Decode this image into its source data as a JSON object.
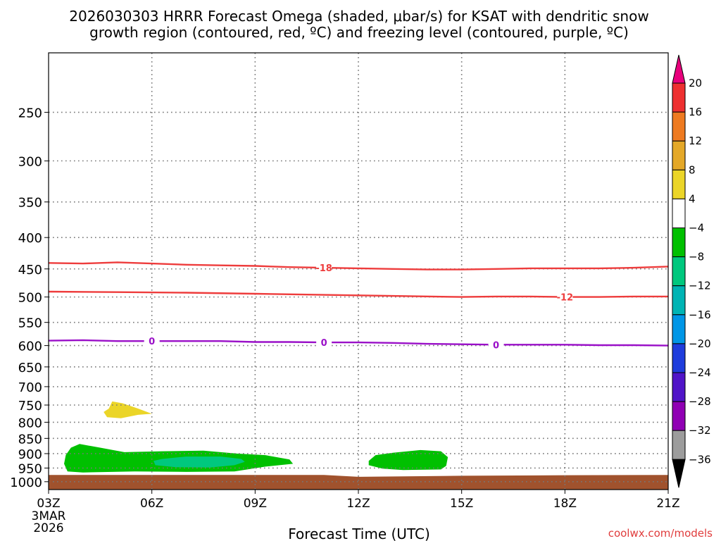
{
  "title_line1": "2026030303 HRRR Forecast Omega (shaded, μbar/s) for KSAT with dendritic snow",
  "title_line2": "growth region (contoured, red, ºC) and freezing level (contoured, purple, ºC)",
  "xlabel": "Forecast Time (UTC)",
  "credit": "coolwx.com/models",
  "chart_data": {
    "type": "time-height cross section",
    "x_ticks": [
      "03Z",
      "06Z",
      "09Z",
      "12Z",
      "15Z",
      "18Z",
      "21Z"
    ],
    "x_tick_hours": [
      3,
      6,
      9,
      12,
      15,
      18,
      21
    ],
    "x_start_date": [
      "3MAR",
      "2026"
    ],
    "x_range_hours": [
      3,
      21
    ],
    "y_ticks": [
      250,
      300,
      350,
      400,
      450,
      500,
      550,
      600,
      650,
      700,
      750,
      800,
      850,
      900,
      950,
      1000
    ],
    "y_range_hPa": [
      200,
      1030
    ],
    "y_scale": "log-pressure",
    "grid": true,
    "colorbar": {
      "labels": [
        "20",
        "16",
        "12",
        "8",
        "4",
        "−4",
        "−8",
        "−12",
        "−16",
        "−20",
        "−24",
        "−28",
        "−32",
        "−36"
      ],
      "colors": [
        "#e8007c",
        "#ee3030",
        "#ee7a20",
        "#e4a828",
        "#ebd528",
        "#ffffff",
        "#00c000",
        "#00c87e",
        "#00b4b4",
        "#0096e6",
        "#1e3cdc",
        "#5014c8",
        "#9000b4",
        "#9c9c9c",
        "#000000"
      ]
    },
    "contours": [
      {
        "label": "-18",
        "color": "#ee3c3c",
        "points": [
          [
            3,
            440
          ],
          [
            4,
            441
          ],
          [
            5,
            439
          ],
          [
            6,
            441
          ],
          [
            7,
            443
          ],
          [
            8,
            444
          ],
          [
            9,
            445
          ],
          [
            10,
            447
          ],
          [
            11,
            448
          ],
          [
            12,
            449
          ],
          [
            13,
            450
          ],
          [
            14,
            451
          ],
          [
            15,
            451
          ],
          [
            16,
            450
          ],
          [
            17,
            449
          ],
          [
            18,
            449
          ],
          [
            19,
            449
          ],
          [
            20,
            448
          ],
          [
            21,
            446
          ]
        ],
        "label_at": [
          [
            11,
            448
          ]
        ]
      },
      {
        "label": "-12",
        "color": "#ee3c3c",
        "points": [
          [
            3,
            490
          ],
          [
            5,
            491
          ],
          [
            7,
            492
          ],
          [
            9,
            494
          ],
          [
            11,
            496
          ],
          [
            12,
            497
          ],
          [
            13,
            498
          ],
          [
            15,
            500
          ],
          [
            16,
            499
          ],
          [
            17,
            499
          ],
          [
            18,
            500
          ],
          [
            19,
            500
          ],
          [
            20,
            499
          ],
          [
            21,
            499
          ]
        ],
        "label_at": [
          [
            18,
            500
          ]
        ]
      },
      {
        "label": "0",
        "color": "#9a10c8",
        "points": [
          [
            3,
            589
          ],
          [
            4,
            588
          ],
          [
            5,
            590
          ],
          [
            6,
            590
          ],
          [
            7,
            590
          ],
          [
            8,
            590
          ],
          [
            9,
            592
          ],
          [
            10,
            592
          ],
          [
            11,
            593
          ],
          [
            12,
            593
          ],
          [
            13,
            594
          ],
          [
            14,
            596
          ],
          [
            15,
            597
          ],
          [
            16,
            598
          ],
          [
            17,
            598
          ],
          [
            18,
            598
          ],
          [
            19,
            599
          ],
          [
            20,
            599
          ],
          [
            21,
            600
          ]
        ],
        "label_at": [
          [
            6,
            590
          ],
          [
            11,
            593
          ],
          [
            16,
            598
          ]
        ]
      }
    ],
    "shaded_areas": [
      {
        "value_range": [
          4,
          8
        ],
        "color": "#ebd528",
        "polygon": [
          [
            4.75,
            760
          ],
          [
            4.85,
            740
          ],
          [
            5.15,
            745
          ],
          [
            5.6,
            760
          ],
          [
            6.0,
            775
          ],
          [
            5.6,
            778
          ],
          [
            5.1,
            788
          ],
          [
            4.7,
            785
          ],
          [
            4.6,
            770
          ]
        ]
      },
      {
        "value_range": [
          -8,
          -4
        ],
        "color": "#00c000",
        "polygon": [
          [
            3.5,
            905
          ],
          [
            3.65,
            880
          ],
          [
            3.9,
            868
          ],
          [
            4.5,
            880
          ],
          [
            5.2,
            895
          ],
          [
            6.3,
            892
          ],
          [
            7.5,
            890
          ],
          [
            8.5,
            900
          ],
          [
            9.3,
            905
          ],
          [
            10.0,
            920
          ],
          [
            10.1,
            935
          ],
          [
            9.3,
            945
          ],
          [
            8.4,
            962
          ],
          [
            7.0,
            964
          ],
          [
            5.5,
            962
          ],
          [
            4.0,
            966
          ],
          [
            3.55,
            962
          ],
          [
            3.45,
            935
          ]
        ]
      },
      {
        "value_range": [
          -8,
          -4
        ],
        "color": "#00c000",
        "polygon": [
          [
            12.3,
            925
          ],
          [
            12.5,
            905
          ],
          [
            13.0,
            897
          ],
          [
            13.8,
            888
          ],
          [
            14.4,
            892
          ],
          [
            14.6,
            912
          ],
          [
            14.55,
            942
          ],
          [
            14.4,
            955
          ],
          [
            13.3,
            957
          ],
          [
            12.7,
            952
          ],
          [
            12.3,
            940
          ]
        ]
      },
      {
        "value_range": [
          -12,
          -8
        ],
        "color": "#00c87e",
        "polygon": [
          [
            6.05,
            925
          ],
          [
            6.3,
            918
          ],
          [
            7.0,
            910
          ],
          [
            8.0,
            910
          ],
          [
            8.6,
            918
          ],
          [
            8.7,
            928
          ],
          [
            8.4,
            940
          ],
          [
            7.7,
            948
          ],
          [
            6.7,
            947
          ],
          [
            6.1,
            940
          ]
        ]
      }
    ],
    "terrain": {
      "color": "#a0522d",
      "top_hPa": [
        [
          3,
          975
        ],
        [
          11,
          975
        ],
        [
          12,
          982
        ],
        [
          15,
          978
        ],
        [
          18,
          976
        ],
        [
          21,
          975
        ]
      ]
    }
  }
}
